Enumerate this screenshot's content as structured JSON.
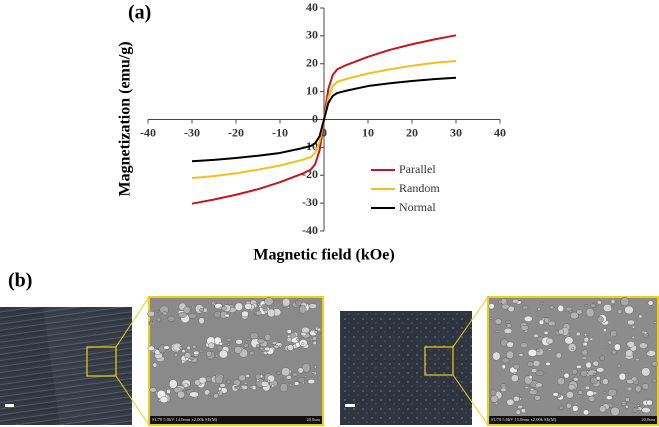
{
  "panel_labels": [
    "(a)",
    "(b)"
  ],
  "sem_captions": [
    {
      "info": "SU70 5.0kV 14.0mm x2.00k SE(M)",
      "scale": "20.0um"
    },
    {
      "info": "SU70 5.0kV 15.0mm x2.00k SE(M)",
      "scale": "20.0um"
    }
  ],
  "chart_data": {
    "type": "line",
    "x_label": "Magnetic field (kOe)",
    "y_label": "Magnetization (emu/g)",
    "x": [
      -30,
      -25,
      -20,
      -15,
      -10,
      -5,
      -3,
      -2,
      -1,
      -0.5,
      0,
      0.5,
      1,
      2,
      3,
      5,
      10,
      15,
      20,
      25,
      30
    ],
    "series": [
      {
        "name": "Parallel",
        "color": "#c0181e",
        "values": [
          -30.2,
          -28.7,
          -27,
          -25,
          -22.5,
          -19.5,
          -18,
          -16,
          -11,
          -6,
          0,
          6,
          11,
          16,
          18,
          19.5,
          22.5,
          25,
          27,
          28.7,
          30.2
        ]
      },
      {
        "name": "Random",
        "color": "#f0c020",
        "values": [
          -21,
          -20.3,
          -19.3,
          -18,
          -16.5,
          -14.5,
          -13.5,
          -12,
          -8,
          -4,
          0,
          4,
          8,
          12,
          13.5,
          14.5,
          16.5,
          18,
          19.3,
          20.3,
          21
        ]
      },
      {
        "name": "Normal",
        "color": "#000000",
        "values": [
          -15,
          -14.5,
          -13.8,
          -13,
          -12,
          -10.3,
          -9.5,
          -8.5,
          -6,
          -3,
          0,
          3,
          6,
          8.5,
          9.5,
          10.3,
          12,
          13,
          13.8,
          14.5,
          15
        ]
      }
    ],
    "xlim": [
      -40,
      40
    ],
    "xticks": [
      -40,
      -30,
      -20,
      -10,
      0,
      10,
      20,
      30,
      40
    ],
    "ylim": [
      -40,
      40
    ],
    "yticks": [
      -40,
      -30,
      -20,
      -10,
      0,
      10,
      20,
      30,
      40
    ],
    "grid": false,
    "legend": "lower right"
  }
}
